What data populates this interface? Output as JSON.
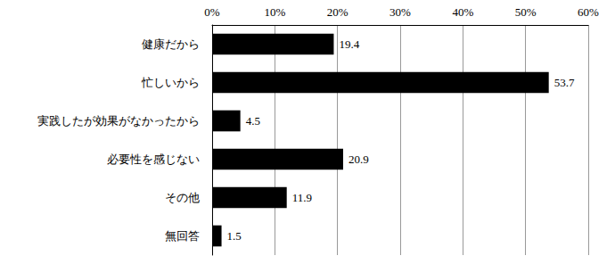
{
  "chart_data": {
    "type": "bar",
    "orientation": "horizontal",
    "categories": [
      "健康だから",
      "忙しいから",
      "実践したが効果がなかったから",
      "必要性を感じない",
      "その他",
      "無回答"
    ],
    "values": [
      19.4,
      53.7,
      4.5,
      20.9,
      11.9,
      1.5
    ],
    "color": "#000000",
    "xlim": [
      0,
      60
    ],
    "xticks": [
      {
        "value": 0,
        "label": "0%"
      },
      {
        "value": 10,
        "label": "10%"
      },
      {
        "value": 20,
        "label": "20%"
      },
      {
        "value": 30,
        "label": "30%"
      },
      {
        "value": 40,
        "label": "40%"
      },
      {
        "value": 50,
        "label": "50%"
      },
      {
        "value": 60,
        "label": "60%"
      }
    ],
    "grid": true,
    "data_labels": true
  }
}
